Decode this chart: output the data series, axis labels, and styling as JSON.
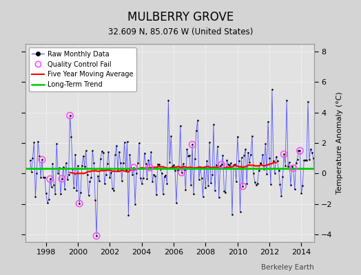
{
  "title": "MULBERRY GROVE",
  "subtitle": "32.609 N, 85.076 W (United States)",
  "ylabel": "Temperature Anomaly (°C)",
  "watermark": "Berkeley Earth",
  "ylim": [
    -4.5,
    8.5
  ],
  "xlim": [
    1996.7,
    2014.8
  ],
  "xticks": [
    1998,
    2000,
    2002,
    2004,
    2006,
    2008,
    2010,
    2012,
    2014
  ],
  "yticks": [
    -4,
    -2,
    0,
    2,
    4,
    6,
    8
  ],
  "bg_color": "#d4d4d4",
  "plot_bg_color": "#e2e2e2",
  "raw_line_color": "#5555ff",
  "raw_dot_color": "#000000",
  "ma_color": "#ff0000",
  "trend_color": "#00cc00",
  "qc_color": "#ff44ff",
  "long_term_trend_value": 0.32,
  "seed": 42,
  "n_points": 216,
  "start_year": 1997.042
}
